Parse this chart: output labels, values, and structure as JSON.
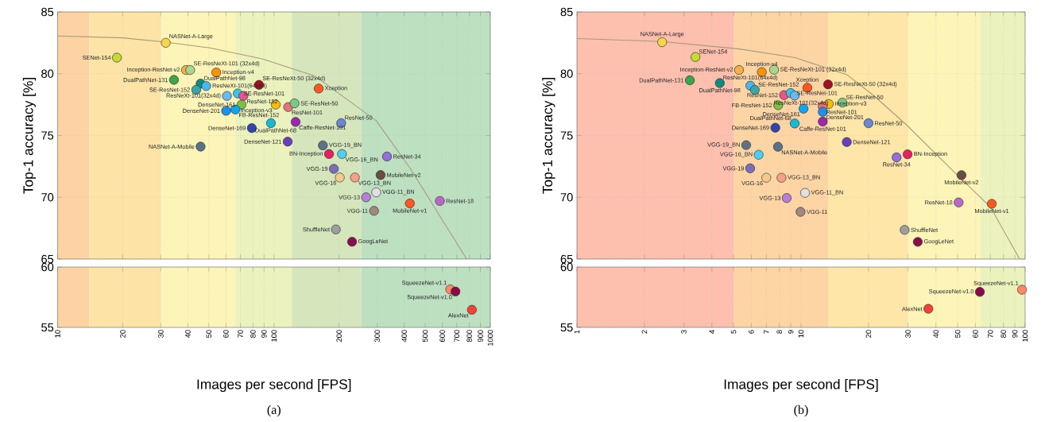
{
  "chart_data": [
    {
      "type": "scatter",
      "ylabel": "Top-1 accuracy [%]",
      "xlim": [
        10,
        1000
      ],
      "ylim": [
        65,
        85
      ],
      "xticks": [
        10,
        20,
        30,
        40,
        50,
        60,
        70,
        80,
        90,
        100,
        200,
        300,
        400,
        500,
        600,
        700,
        800,
        900,
        1000
      ],
      "yticks": [
        65,
        70,
        75,
        80,
        85
      ],
      "log": "x",
      "grid": true,
      "tick_labels": "y",
      "bands": [
        {
          "axis": "x",
          "from": 10,
          "to": 14,
          "color": "#fdd3a3"
        },
        {
          "axis": "x",
          "from": 14,
          "to": 30,
          "color": "#fde3a6"
        },
        {
          "axis": "x",
          "from": 30,
          "to": 66,
          "color": "#fdf4b8"
        },
        {
          "axis": "x",
          "from": 66,
          "to": 121,
          "color": "#ecf2bd"
        },
        {
          "axis": "x",
          "from": 121,
          "to": 253,
          "color": "#d5e6bc"
        },
        {
          "axis": "x",
          "from": 253,
          "to": 1000,
          "color": "#bde0c1"
        }
      ],
      "series": [
        {
          "type": "line",
          "color": "#a89a78",
          "x": [
            10,
            20,
            31.6,
            50,
            88,
            155,
            297,
            428,
            598,
            778
          ],
          "values": [
            83.05,
            82.9,
            82.55,
            82.1,
            81.2,
            79.8,
            76.2,
            72.3,
            68.2,
            65.0
          ]
        },
        {
          "type": "scatter",
          "marker": "circle",
          "x": [
            31.6,
            18.8,
            39.2,
            41.0,
            54.1,
            34.5,
            45.8,
            48.6,
            43.7,
            85.3,
            60.6,
            68.0,
            72.2,
            70.8,
            101.9,
            60.1,
            66.3,
            79.0,
            96.8,
            115.7,
            45.8,
            116.3,
            124.4,
            160.9,
            125.9,
            204.5,
            168.3,
            179.6,
            206.3,
            333,
            189.1,
            201.5,
            236.6,
            311,
            296.8,
            266.5,
            424.6,
            584.4,
            290,
            193.2,
            229.6
          ],
          "values": [
            82.5,
            81.3,
            80.3,
            80.3,
            80.1,
            79.5,
            79.2,
            79.0,
            78.7,
            79.1,
            78.2,
            78.4,
            78.2,
            77.5,
            77.5,
            77.0,
            77.1,
            75.6,
            76.0,
            74.5,
            74.1,
            77.3,
            77.6,
            78.8,
            76.1,
            76.0,
            74.2,
            73.5,
            73.5,
            73.3,
            72.3,
            71.6,
            71.6,
            71.8,
            70.4,
            70.0,
            69.5,
            69.7,
            68.9,
            67.4,
            66.4
          ],
          "colors": [
            "#f9d34a",
            "#c8d931",
            "#f5b04a",
            "#a8d68a",
            "#f7940c",
            "#3da64a",
            "#128a7e",
            "#4bb7ef",
            "#3aa6a6",
            "#a3101f",
            "#6cb8f0",
            "#3cc4e0",
            "#e9538f",
            "#7cc144",
            "#f7be0c",
            "#1e90e8",
            "#13a3f0",
            "#3246ad",
            "#17b9d2",
            "#6a3fbd",
            "#5a7388",
            "#e8727a",
            "#7cc784",
            "#fe5722",
            "#9c27b0",
            "#6c86d2",
            "#5f7186",
            "#e91e63",
            "#4fcff0",
            "#9370db",
            "#7b6fb8",
            "#f5c98a",
            "#f7a089",
            "#6d4c41",
            "#e0e0e0",
            "#b77fd6",
            "#ff5722",
            "#ba68c8",
            "#a1887f",
            "#9e9e9e",
            "#880e4f"
          ]
        }
      ],
      "annotations": [
        {
          "text": "NASNet-A-Large",
          "x": 31.6,
          "y": 82.5
        },
        {
          "text": "SENet-154",
          "x": 18.8,
          "y": 81.3
        },
        {
          "text": "Inception-ResNet-v2",
          "x": 39.2,
          "y": 80.3
        },
        {
          "text": "SE-ResNeXt-101 (32x4d)",
          "x": 41.0,
          "y": 80.3
        },
        {
          "text": "Inception-v4",
          "x": 54.1,
          "y": 80.1
        },
        {
          "text": "DualPathNet-131",
          "x": 34.5,
          "y": 79.5
        },
        {
          "text": "DualPathNet-98",
          "x": 45.8,
          "y": 79.2
        },
        {
          "text": "ResNeXt-101(64x4d)",
          "x": 48.6,
          "y": 79.0
        },
        {
          "text": "SE-ResNet-152",
          "x": 43.7,
          "y": 78.7
        },
        {
          "text": "SE-ResNeXt-50 (32x4d)",
          "x": 85.3,
          "y": 79.1
        },
        {
          "text": "ResNeXt-101(32x4d)",
          "x": 60.6,
          "y": 78.2
        },
        {
          "text": "SE-ResNet-101",
          "x": 68.0,
          "y": 78.4
        },
        {
          "text": "ResNet-152",
          "x": 72.2,
          "y": 78.2
        },
        {
          "text": "DenseNet-161",
          "x": 70.8,
          "y": 77.5
        },
        {
          "text": "Inception-v3",
          "x": 101.9,
          "y": 77.5
        },
        {
          "text": "DenseNet-201",
          "x": 60.1,
          "y": 77.0
        },
        {
          "text": "FB-ResNet-152",
          "x": 66.3,
          "y": 77.1
        },
        {
          "text": "DenseNet-169",
          "x": 79.0,
          "y": 75.6
        },
        {
          "text": "DualPathNet-68",
          "x": 96.8,
          "y": 76.0
        },
        {
          "text": "DenseNet-121",
          "x": 115.7,
          "y": 74.5
        },
        {
          "text": "NASNet-A-Mobile",
          "x": 45.8,
          "y": 74.1
        },
        {
          "text": "ResNet-101",
          "x": 116.3,
          "y": 77.3
        },
        {
          "text": "SE-ResNet-50",
          "x": 124.4,
          "y": 77.6
        },
        {
          "text": "Xception",
          "x": 160.9,
          "y": 78.8
        },
        {
          "text": "Caffe-ResNet-101",
          "x": 125.9,
          "y": 76.1
        },
        {
          "text": "ResNet-50",
          "x": 204.5,
          "y": 76.0
        },
        {
          "text": "VGG-19_BN",
          "x": 168.3,
          "y": 74.2
        },
        {
          "text": "BN-Inception",
          "x": 179.6,
          "y": 73.5
        },
        {
          "text": "VGG-16_BN",
          "x": 206.3,
          "y": 73.5
        },
        {
          "text": "ResNet-34",
          "x": 333,
          "y": 73.3
        },
        {
          "text": "VGG-19",
          "x": 189.1,
          "y": 72.3
        },
        {
          "text": "VGG-16",
          "x": 201.5,
          "y": 71.6
        },
        {
          "text": "VGG-13_BN",
          "x": 236.6,
          "y": 71.6
        },
        {
          "text": "MobileNet-v2",
          "x": 311,
          "y": 71.8
        },
        {
          "text": "VGG-11_BN",
          "x": 296.8,
          "y": 70.4
        },
        {
          "text": "VGG-13",
          "x": 266.5,
          "y": 70.0
        },
        {
          "text": "MobileNet-v1",
          "x": 424.6,
          "y": 69.5
        },
        {
          "text": "ResNet-18",
          "x": 584.4,
          "y": 69.7
        },
        {
          "text": "VGG-11",
          "x": 290,
          "y": 68.9
        },
        {
          "text": "ShuffleNet",
          "x": 193.2,
          "y": 67.4
        },
        {
          "text": "GoogLeNet",
          "x": 229.6,
          "y": 66.4
        }
      ]
    },
    {
      "type": "scatter",
      "xlabel": "Images per second [FPS]",
      "xlim": [
        10,
        1000
      ],
      "ylim": [
        55,
        60
      ],
      "xticks": [
        10,
        20,
        30,
        40,
        50,
        60,
        70,
        80,
        90,
        100,
        200,
        300,
        400,
        500,
        600,
        700,
        800,
        900,
        1000
      ],
      "yticks": [
        55,
        60
      ],
      "log": "x",
      "grid": true,
      "bands": [
        {
          "axis": "x",
          "from": 10,
          "to": 14,
          "color": "#fdd3a3"
        },
        {
          "axis": "x",
          "from": 14,
          "to": 30,
          "color": "#fde3a6"
        },
        {
          "axis": "x",
          "from": 30,
          "to": 66,
          "color": "#fdf4b8"
        },
        {
          "axis": "x",
          "from": 66,
          "to": 121,
          "color": "#ecf2bd"
        },
        {
          "axis": "x",
          "from": 121,
          "to": 253,
          "color": "#d5e6bc"
        },
        {
          "axis": "x",
          "from": 253,
          "to": 1000,
          "color": "#bde0c1"
        }
      ],
      "series": [
        {
          "type": "scatter",
          "marker": "circle",
          "x": [
            653,
            690,
            822
          ],
          "values": [
            58.15,
            57.97,
            56.46
          ],
          "colors": [
            "#ff8a65",
            "#8b0a45",
            "#f44336"
          ]
        }
      ],
      "annotations": [
        {
          "text": "SqueezeNet-v1.1",
          "x": 653,
          "y": 58.15
        },
        {
          "text": "SqueezeNet-v1.0",
          "x": 690,
          "y": 57.97
        },
        {
          "text": "AlexNet",
          "x": 822,
          "y": 56.46
        },
        "(a)"
      ]
    },
    {
      "type": "scatter",
      "ylabel": "Top-1 accuracy [%]",
      "xlim": [
        1,
        100
      ],
      "ylim": [
        65,
        85
      ],
      "xticks": [
        1,
        2,
        3,
        4,
        5,
        6,
        7,
        8,
        9,
        10,
        20,
        30,
        40,
        50,
        60,
        70,
        80,
        90,
        100
      ],
      "yticks": [
        65,
        70,
        75,
        80,
        85
      ],
      "log": "x",
      "grid": true,
      "tick_labels": "y",
      "bands": [
        {
          "axis": "x",
          "from": 1,
          "to": 5,
          "color": "#fdbfae"
        },
        {
          "axis": "x",
          "from": 5,
          "to": 13.2,
          "color": "#fdd5a5"
        },
        {
          "axis": "x",
          "from": 13.2,
          "to": 30,
          "color": "#fde6a8"
        },
        {
          "axis": "x",
          "from": 30,
          "to": 63,
          "color": "#fdf5b8"
        },
        {
          "axis": "x",
          "from": 63,
          "to": 100,
          "color": "#ecf2bd"
        }
      ],
      "series": [
        {
          "type": "line",
          "color": "#a89a78",
          "x": [
            1,
            2.4,
            5.3,
            9.4,
            16.1,
            21.2,
            29.4,
            47.9,
            70.1,
            94.5
          ],
          "values": [
            82.85,
            82.6,
            82.0,
            81.3,
            79.9,
            78.2,
            75.9,
            72.1,
            69.2,
            65.0
          ]
        },
        {
          "type": "scatter",
          "marker": "circle",
          "x": [
            2.4,
            3.38,
            5.29,
            6.68,
            7.58,
            3.19,
            4.34,
            5.94,
            6.22,
            10.67,
            8.4,
            8.99,
            9.37,
            7.91,
            10.26,
            9.37,
            7.68,
            5.69,
            7.89,
            6.47,
            5.93,
            7.0,
            8.18,
            10.42,
            8.63,
            9.95,
            13.2,
            13.3,
            15.3,
            12.5,
            12.5,
            12.5,
            20.0,
            16.0,
            29.9,
            26.7,
            52.0,
            50.5,
            71.0,
            29.0,
            33.2
          ],
          "values": [
            82.55,
            81.35,
            80.3,
            80.13,
            80.32,
            79.47,
            79.24,
            79.03,
            78.69,
            78.86,
            78.27,
            78.44,
            78.23,
            77.45,
            77.17,
            75.97,
            75.63,
            74.22,
            74.09,
            73.44,
            72.34,
            71.58,
            71.58,
            70.36,
            69.94,
            68.82,
            79.13,
            77.55,
            77.66,
            77.34,
            76.92,
            76.12,
            75.99,
            74.47,
            73.48,
            73.23,
            71.79,
            69.58,
            69.47,
            67.36,
            66.39
          ],
          "colors": [
            "#f9d34a",
            "#c8d931",
            "#f5b04a",
            "#f7940c",
            "#a8d68a",
            "#3da64a",
            "#128a7e",
            "#4bb7ef",
            "#3aa6a6",
            "#fe5722",
            "#e9538f",
            "#3cc4e0",
            "#6cb8f0",
            "#7cc144",
            "#13a3f0",
            "#17b9d2",
            "#3246ad",
            "#5f7186",
            "#5a7388",
            "#4fcff0",
            "#7b6fb8",
            "#f5c98a",
            "#f7a089",
            "#e0e0e0",
            "#b77fd6",
            "#a1887f",
            "#a3101f",
            "#f7be0c",
            "#7cc784",
            "#e8727a",
            "#1e90e8",
            "#9c27b0",
            "#6c86d2",
            "#6a3fbd",
            "#e91e63",
            "#9370db",
            "#6d4c41",
            "#ba68c8",
            "#ff5722",
            "#9e9e9e",
            "#880e4f"
          ]
        }
      ],
      "annotations": [
        {
          "text": "NASNet-A-Large",
          "x": 2.4,
          "y": 82.55
        },
        {
          "text": "SENet-154",
          "x": 3.38,
          "y": 81.35
        },
        {
          "text": "Inception-ResNet-v2",
          "x": 5.29,
          "y": 80.3
        },
        {
          "text": "Inception-v4",
          "x": 6.68,
          "y": 80.13
        },
        {
          "text": "SE-ResNeXt-101 (32x4d)",
          "x": 7.58,
          "y": 80.32
        },
        {
          "text": "DualPathNet-131",
          "x": 3.19,
          "y": 79.47
        },
        {
          "text": "DualPathNet-98",
          "x": 4.34,
          "y": 79.24
        },
        {
          "text": "ResNeXt-101(64x4d)",
          "x": 5.94,
          "y": 79.03
        },
        {
          "text": "SE-ResNet-152",
          "x": 6.22,
          "y": 78.69
        },
        {
          "text": "Xception",
          "x": 10.67,
          "y": 78.86
        },
        {
          "text": "ResNet-152",
          "x": 8.4,
          "y": 78.27
        },
        {
          "text": "SE-ResNet-101",
          "x": 8.99,
          "y": 78.44
        },
        {
          "text": "ResNeXt-101(32x4d)",
          "x": 9.37,
          "y": 78.23
        },
        {
          "text": "FB-ResNet-152",
          "x": 7.91,
          "y": 77.45
        },
        {
          "text": "DenseNet-161",
          "x": 10.26,
          "y": 77.17
        },
        {
          "text": "DualPathNet-68",
          "x": 9.37,
          "y": 75.97
        },
        {
          "text": "DenseNet-169",
          "x": 7.68,
          "y": 75.63
        },
        {
          "text": "VGG-19_BN",
          "x": 5.69,
          "y": 74.22
        },
        {
          "text": "NASNet-A-Mobile",
          "x": 7.89,
          "y": 74.09
        },
        {
          "text": "VGG-16_BN",
          "x": 6.47,
          "y": 73.44
        },
        {
          "text": "VGG-19",
          "x": 5.93,
          "y": 72.34
        },
        {
          "text": "VGG-16",
          "x": 7.0,
          "y": 71.58
        },
        {
          "text": "VGG-13_BN",
          "x": 8.18,
          "y": 71.58
        },
        {
          "text": "VGG-11_BN",
          "x": 10.42,
          "y": 70.36
        },
        {
          "text": "VGG-13",
          "x": 8.63,
          "y": 69.94
        },
        {
          "text": "VGG-11",
          "x": 9.95,
          "y": 68.82
        },
        {
          "text": "SE-ResNeXt-50 (32x4d)",
          "x": 13.2,
          "y": 79.13
        },
        {
          "text": "Inception-v3",
          "x": 13.3,
          "y": 77.55
        },
        {
          "text": "SE-ResNet-50",
          "x": 15.3,
          "y": 77.66
        },
        {
          "text": "ResNet-101",
          "x": 12.5,
          "y": 77.34
        },
        {
          "text": "DenseNet-201",
          "x": 12.5,
          "y": 76.92
        },
        {
          "text": "Caffe-ResNet-101",
          "x": 12.5,
          "y": 76.12
        },
        {
          "text": "ResNet-50",
          "x": 20.0,
          "y": 75.99
        },
        {
          "text": "DenseNet-121",
          "x": 16.0,
          "y": 74.47
        },
        {
          "text": "BN-Inception",
          "x": 29.9,
          "y": 73.48
        },
        {
          "text": "ResNet-34",
          "x": 26.7,
          "y": 73.23
        },
        {
          "text": "MobileNet-v2",
          "x": 52.0,
          "y": 71.79
        },
        {
          "text": "ResNet-18",
          "x": 50.5,
          "y": 69.58
        },
        {
          "text": "MobileNet-v1",
          "x": 71.0,
          "y": 69.47
        },
        {
          "text": "ShuffleNet",
          "x": 29.0,
          "y": 67.36
        },
        {
          "text": "GoogLeNet",
          "x": 33.2,
          "y": 66.39
        }
      ]
    },
    {
      "type": "scatter",
      "xlabel": "Images per second [FPS]",
      "xlim": [
        1,
        100
      ],
      "ylim": [
        55,
        60
      ],
      "xticks": [
        1,
        2,
        3,
        4,
        5,
        6,
        7,
        8,
        9,
        10,
        20,
        30,
        40,
        50,
        60,
        70,
        80,
        90,
        100
      ],
      "yticks": [
        55,
        60
      ],
      "log": "x",
      "grid": true,
      "bands": [
        {
          "axis": "x",
          "from": 1,
          "to": 5,
          "color": "#fdbfae"
        },
        {
          "axis": "x",
          "from": 5,
          "to": 13.2,
          "color": "#fdd5a5"
        },
        {
          "axis": "x",
          "from": 13.2,
          "to": 30,
          "color": "#fde6a8"
        },
        {
          "axis": "x",
          "from": 30,
          "to": 63,
          "color": "#fdf5b8"
        },
        {
          "axis": "x",
          "from": 63,
          "to": 100,
          "color": "#ecf2bd"
        }
      ],
      "series": [
        {
          "type": "scatter",
          "marker": "circle",
          "x": [
            96.8,
            62.8,
            37.0
          ],
          "values": [
            58.12,
            57.94,
            56.54
          ],
          "colors": [
            "#ff8a65",
            "#8b0a45",
            "#f44336"
          ]
        }
      ],
      "annotations": [
        {
          "text": "SqueezeNet-v1.1",
          "x": 96.8,
          "y": 58.12
        },
        {
          "text": "SqueezeNet-v1.0",
          "x": 62.8,
          "y": 57.94
        },
        {
          "text": "AlexNet",
          "x": 37.0,
          "y": 56.54
        },
        "(b)"
      ]
    }
  ]
}
